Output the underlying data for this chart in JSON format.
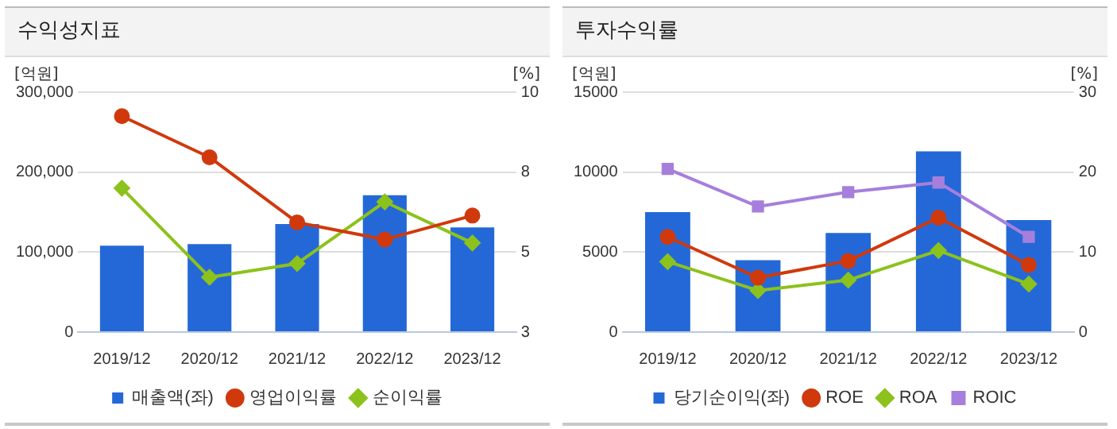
{
  "chart_data": [
    {
      "type": "bar",
      "title": "수익성지표",
      "ylabel": "[억원]",
      "y2label": "[%]",
      "categories": [
        "2019/12",
        "2020/12",
        "2021/12",
        "2022/12",
        "2023/12"
      ],
      "series": [
        {
          "name": "매출액(좌)",
          "color": "#2468d8",
          "values": [
            108000,
            110000,
            135000,
            171000,
            131000
          ]
        },
        {
          "name": "영업이익률",
          "type": "line",
          "axis": "y2",
          "color": "#d0390c",
          "marker": "circle",
          "values": [
            9.3,
            8.1,
            6.2,
            5.7,
            6.4
          ]
        },
        {
          "name": "순이익률",
          "type": "line",
          "axis": "y2",
          "color": "#8cc21c",
          "marker": "diamond",
          "values": [
            7.2,
            4.6,
            5.0,
            6.8,
            5.6
          ]
        }
      ],
      "ylim": [
        0,
        300000
      ],
      "yticks": [
        {
          "value": 0,
          "label": "0"
        },
        {
          "value": 100000,
          "label": "100,000"
        },
        {
          "value": 200000,
          "label": "200,000"
        },
        {
          "value": 300000,
          "label": "300,000"
        }
      ],
      "y2lim": [
        3,
        10
      ],
      "y2ticks": [
        3,
        {
          "value": 5.33,
          "label": "5"
        },
        {
          "value": 7.67,
          "label": "8"
        },
        10
      ],
      "grid": "y",
      "legend": "bottom"
    },
    {
      "type": "bar",
      "title": "투자수익률",
      "ylabel": "[억원]",
      "y2label": "[%]",
      "categories": [
        "2019/12",
        "2020/12",
        "2021/12",
        "2022/12",
        "2023/12"
      ],
      "series": [
        {
          "name": "당기순이익(좌)",
          "color": "#2468d8",
          "values": [
            7500,
            4500,
            6200,
            11300,
            7000
          ]
        },
        {
          "name": "ROE",
          "type": "line",
          "axis": "y2",
          "color": "#d0390c",
          "marker": "circle",
          "values": [
            11.9,
            6.8,
            8.9,
            14.3,
            8.4
          ]
        },
        {
          "name": "ROA",
          "type": "line",
          "axis": "y2",
          "color": "#8cc21c",
          "marker": "diamond",
          "values": [
            8.8,
            5.2,
            6.5,
            10.2,
            6.0
          ]
        },
        {
          "name": "ROIC",
          "type": "line",
          "axis": "y2",
          "color": "#a67fdc",
          "marker": "square",
          "values": [
            20.4,
            15.7,
            17.5,
            18.7,
            11.9
          ]
        }
      ],
      "ylim": [
        0,
        15000
      ],
      "yticks": [
        0,
        5000,
        10000,
        15000
      ],
      "y2lim": [
        0,
        30
      ],
      "y2ticks": [
        0,
        10,
        20,
        30
      ],
      "grid": "y",
      "legend": "bottom"
    }
  ]
}
